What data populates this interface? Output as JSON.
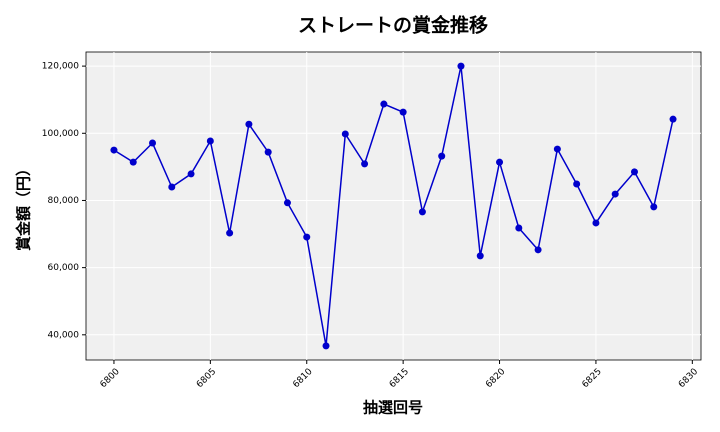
{
  "chart_data": {
    "type": "line",
    "title": "ストレートの賞金推移",
    "x_label": "抽選回号",
    "y_label": "賞金額（円）",
    "x": [
      6800,
      6801,
      6802,
      6803,
      6804,
      6805,
      6806,
      6807,
      6808,
      6809,
      6810,
      6811,
      6812,
      6813,
      6814,
      6815,
      6816,
      6817,
      6818,
      6819,
      6820,
      6821,
      6822,
      6823,
      6824,
      6825,
      6826,
      6827,
      6828,
      6829
    ],
    "series": [
      {
        "color": "#0000cc",
        "values": [
          95000,
          91400,
          97100,
          84000,
          87900,
          97700,
          70300,
          102700,
          94400,
          79300,
          69100,
          36700,
          99800,
          90900,
          108700,
          106300,
          76600,
          93200,
          120000,
          63500,
          91400,
          71800,
          65300,
          95300,
          84900,
          73300,
          81900,
          88500,
          78100,
          104200
        ]
      }
    ],
    "xlim": [
      6798.55,
      6830.45
    ],
    "ylim": [
      32500,
      124200
    ],
    "xticks": [
      6800,
      6805,
      6810,
      6815,
      6820,
      6825,
      6830
    ],
    "yticks": [
      {
        "value": 40000,
        "label": "40,000"
      },
      {
        "value": 60000,
        "label": "60,000"
      },
      {
        "value": 80000,
        "label": "80,000"
      },
      {
        "value": 100000,
        "label": "100,000"
      },
      {
        "value": 120000,
        "label": "120,000"
      }
    ],
    "grid": true
  }
}
